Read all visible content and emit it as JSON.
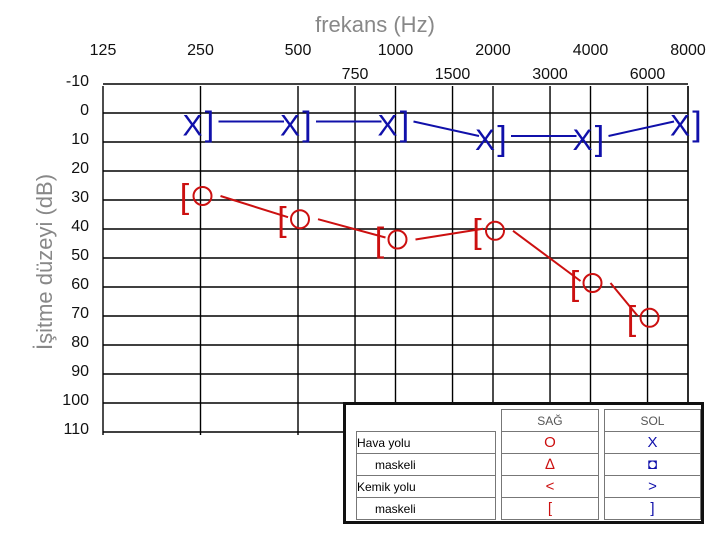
{
  "chart_data": {
    "type": "line",
    "title": "frekans (Hz)",
    "ylabel": "İşitme düzeyi (dB)",
    "x_ticks_top": [
      "125",
      "250",
      "500",
      "1000",
      "2000",
      "4000",
      "8000"
    ],
    "x_ticks_mid": [
      "750",
      "1500",
      "3000",
      "6000"
    ],
    "y_ticks": [
      "-10",
      "0",
      "10",
      "20",
      "30",
      "40",
      "50",
      "60",
      "70",
      "80",
      "90",
      "100",
      "110"
    ],
    "ylim": [
      -10,
      110
    ],
    "y_inverted": true,
    "grid": true,
    "series": [
      {
        "symbol": "X]",
        "color": "#1010aa",
        "points": [
          {
            "x": "250",
            "y": 5
          },
          {
            "x": "500",
            "y": 5
          },
          {
            "x": "1000",
            "y": 5
          },
          {
            "x": "2000",
            "y": 10
          },
          {
            "x": "4000",
            "y": 10
          },
          {
            "x": "8000",
            "y": 5
          }
        ]
      },
      {
        "symbol": "[O",
        "color": "#cc1010",
        "points": [
          {
            "x": "250",
            "y": 30
          },
          {
            "x": "500",
            "y": 38
          },
          {
            "x": "1000",
            "y": 45
          },
          {
            "x": "2000",
            "y": 42
          },
          {
            "x": "4000",
            "y": 60
          },
          {
            "x": "6000",
            "y": 72
          }
        ]
      }
    ]
  },
  "legend": {
    "header_right": "SAĞ",
    "header_left": "SOL",
    "rows": [
      {
        "label": "Hava yolu",
        "right": "O",
        "left": "X"
      },
      {
        "label": "maskeli",
        "right": "∆",
        "left": "◘"
      },
      {
        "label": "Kemik yolu",
        "right": "<",
        "left": ">"
      },
      {
        "label": "maskeli",
        "right": "[",
        "left": "]"
      }
    ]
  },
  "colors": {
    "left_ear": "#1010aa",
    "right_ear": "#cc1010",
    "grid": "#000000"
  }
}
